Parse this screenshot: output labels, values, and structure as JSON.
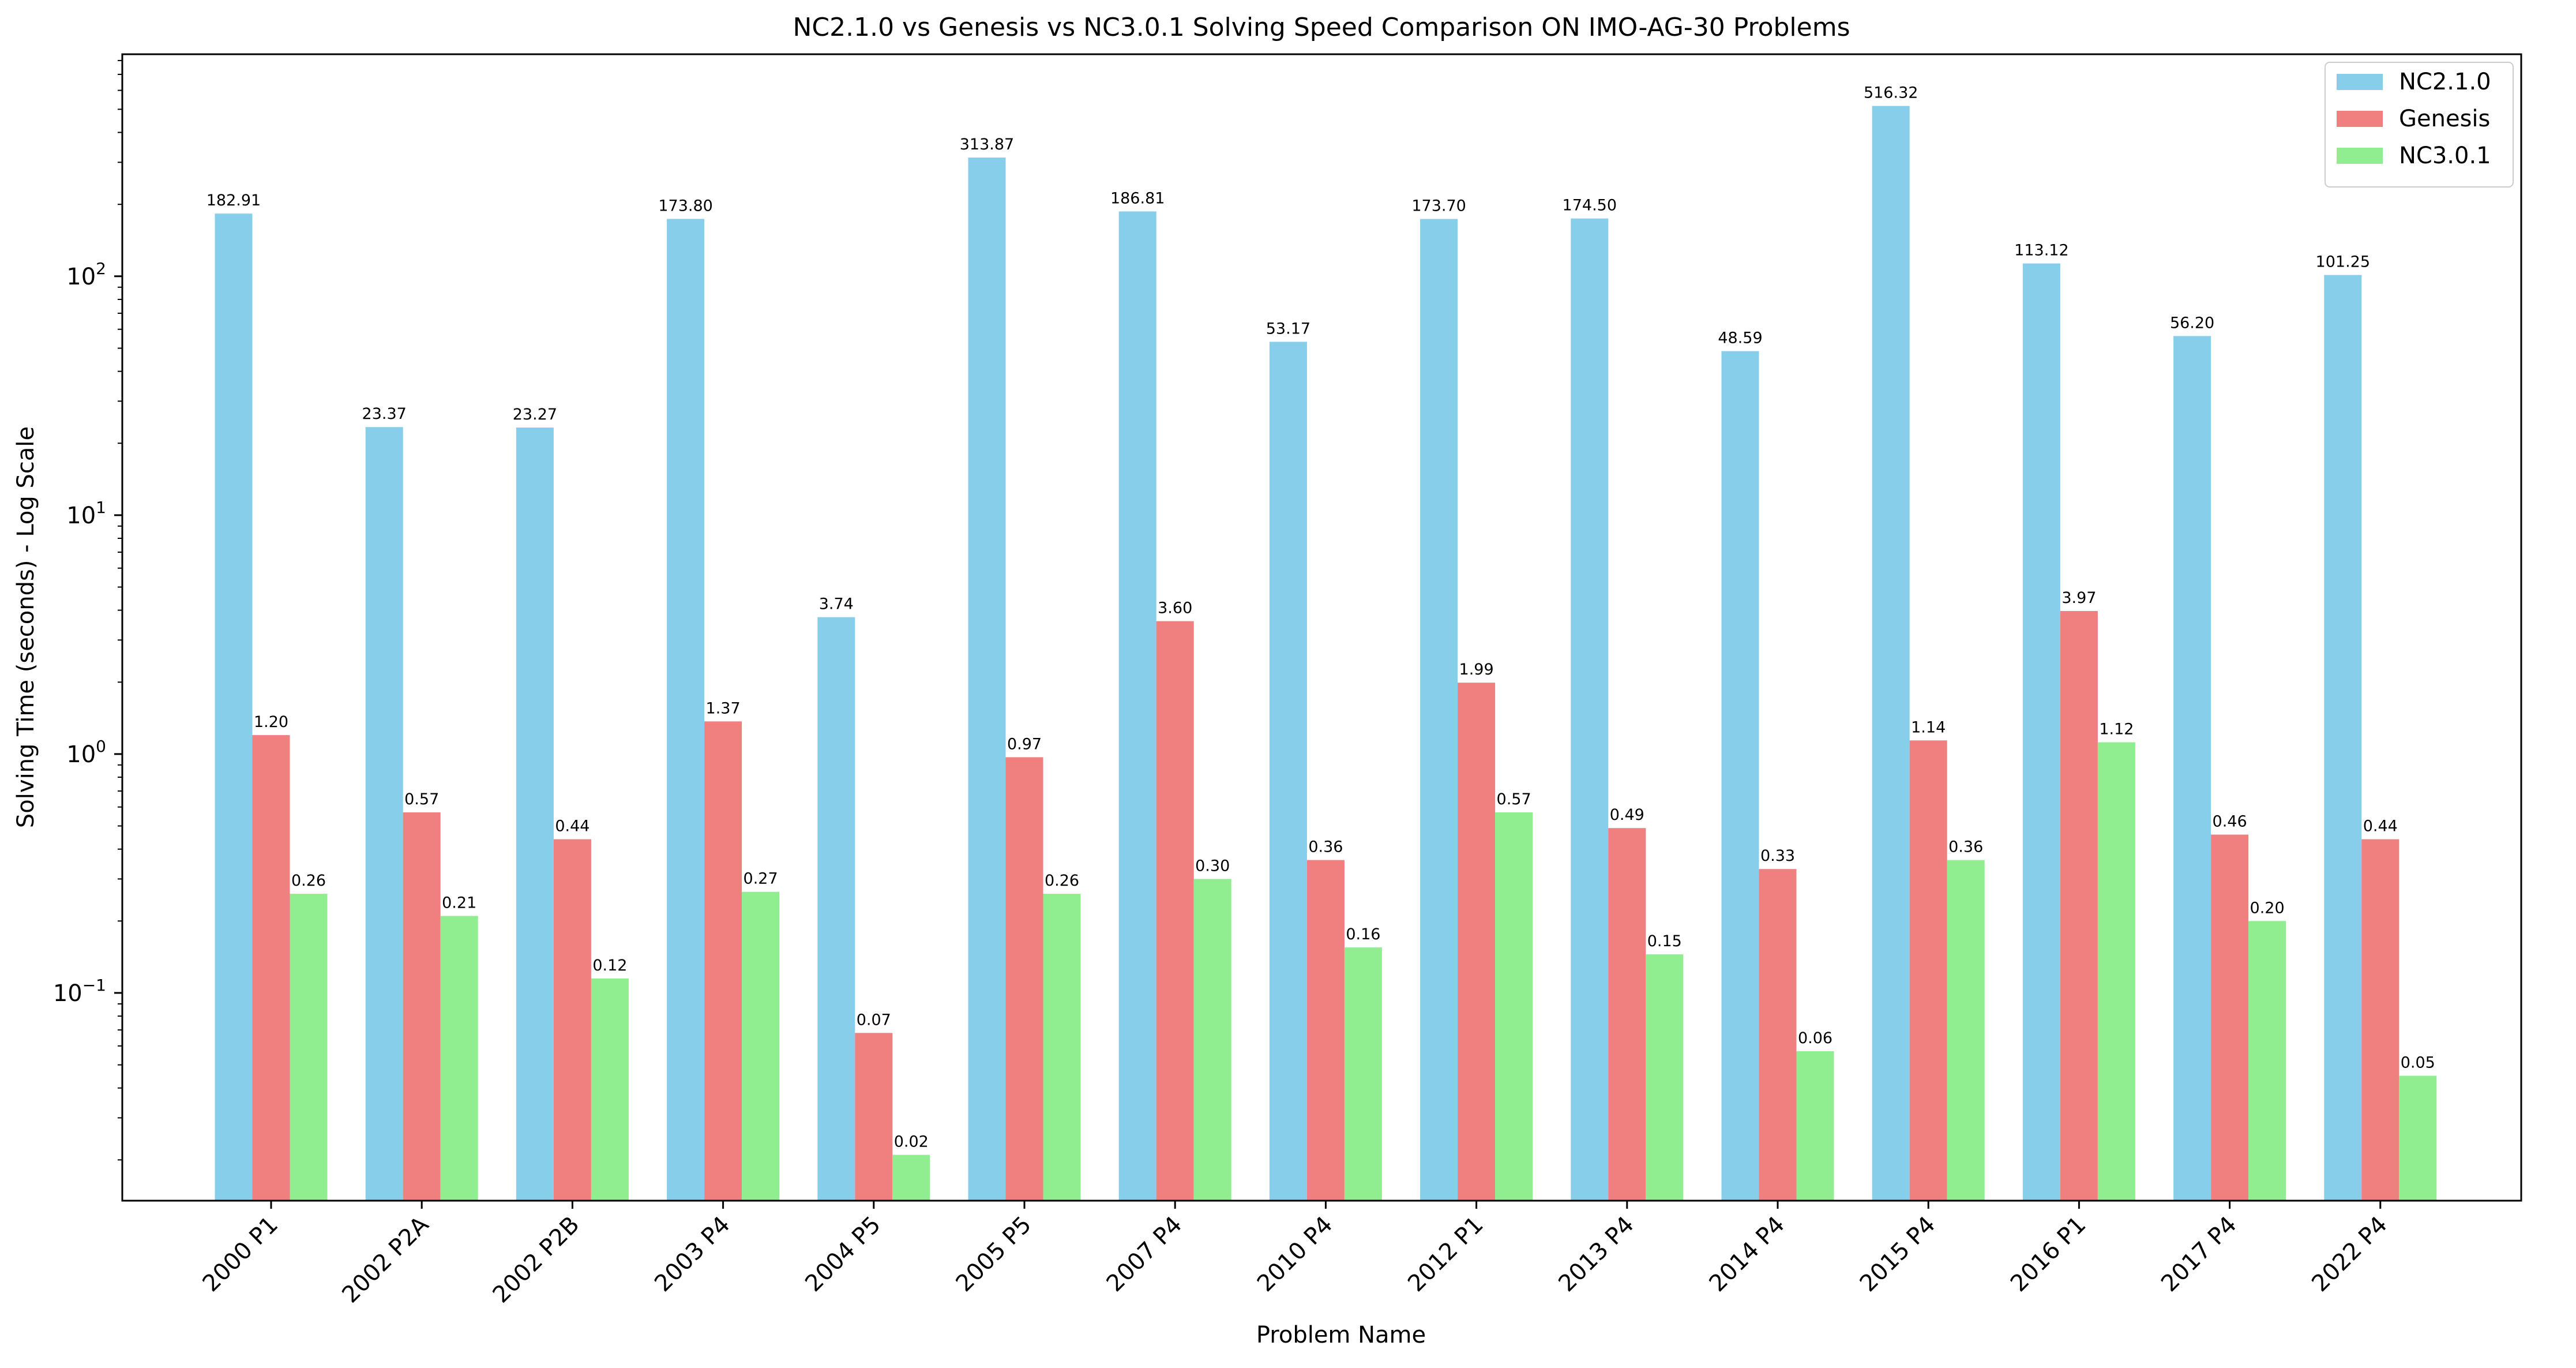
{
  "chart_data": {
    "type": "bar",
    "title": "NC2.1.0 vs Genesis vs NC3.0.1 Solving Speed Comparison ON IMO-AG-30 Problems",
    "xlabel": "Problem Name",
    "ylabel": "Solving Time (seconds) - Log Scale",
    "yscale": "log",
    "ylim": [
      0.0135,
      850
    ],
    "yticks": [
      {
        "value": 0.1,
        "base": "10",
        "exp": "−1"
      },
      {
        "value": 1,
        "base": "10",
        "exp": "0"
      },
      {
        "value": 10,
        "base": "10",
        "exp": "1"
      },
      {
        "value": 100,
        "base": "10",
        "exp": "2"
      }
    ],
    "grid": false,
    "legend_position": "top-right",
    "categories": [
      "2000 P1",
      "2002 P2A",
      "2002 P2B",
      "2003 P4",
      "2004 P5",
      "2005 P5",
      "2007 P4",
      "2010 P4",
      "2012 P1",
      "2013 P4",
      "2014 P4",
      "2015 P4",
      "2016 P1",
      "2017 P4",
      "2022 P4"
    ],
    "series": [
      {
        "name": "NC2.1.0",
        "color": "#87ceeb",
        "values": [
          182.91,
          23.37,
          23.27,
          173.8,
          3.74,
          313.87,
          186.81,
          53.17,
          173.7,
          174.5,
          48.59,
          516.32,
          113.12,
          56.2,
          101.25
        ],
        "labels": [
          "182.91",
          "23.37",
          "23.27",
          "173.80",
          "3.74",
          "313.87",
          "186.81",
          "53.17",
          "173.70",
          "174.50",
          "48.59",
          "516.32",
          "113.12",
          "56.20",
          "101.25"
        ]
      },
      {
        "name": "Genesis",
        "color": "#f08080",
        "values": [
          1.2,
          0.57,
          0.44,
          1.37,
          0.068,
          0.97,
          3.6,
          0.36,
          1.99,
          0.49,
          0.33,
          1.14,
          3.97,
          0.46,
          0.44
        ],
        "labels": [
          "1.20",
          "0.57",
          "0.44",
          "1.37",
          "0.07",
          "0.97",
          "3.60",
          "0.36",
          "1.99",
          "0.49",
          "0.33",
          "1.14",
          "3.97",
          "0.46",
          "0.44"
        ]
      },
      {
        "name": "NC3.0.1",
        "color": "#90ee90",
        "values": [
          0.26,
          0.21,
          0.115,
          0.265,
          0.021,
          0.26,
          0.3,
          0.155,
          0.57,
          0.145,
          0.057,
          0.36,
          1.12,
          0.2,
          0.045
        ],
        "labels": [
          "0.26",
          "0.21",
          "0.12",
          "0.27",
          "0.02",
          "0.26",
          "0.30",
          "0.16",
          "0.57",
          "0.15",
          "0.06",
          "0.36",
          "1.12",
          "0.20",
          "0.05"
        ]
      }
    ]
  }
}
